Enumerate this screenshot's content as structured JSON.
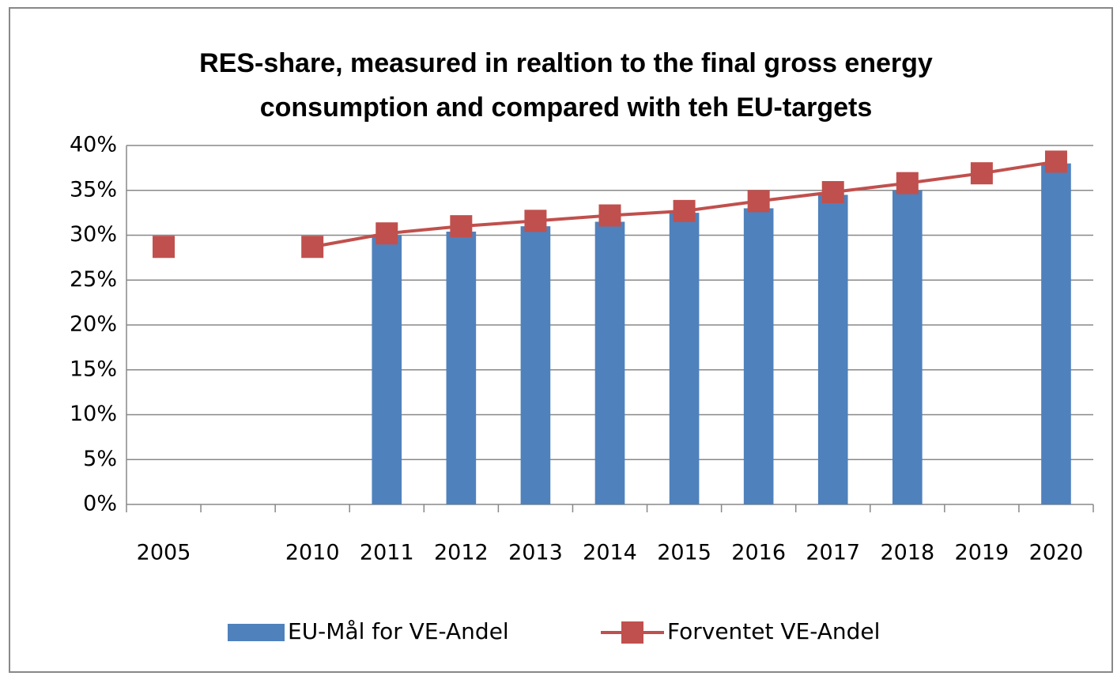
{
  "chart_data": {
    "type": "bar_line",
    "title": [
      "RES-share, measured in realtion to the final gross energy",
      "consumption and compared with teh EU-targets"
    ],
    "categories": [
      "2005",
      null,
      "2010",
      "2011",
      "2012",
      "2013",
      "2014",
      "2015",
      "2016",
      "2017",
      "2018",
      "2019",
      "2020"
    ],
    "series": [
      {
        "name": "EU-Mål for VE-Andel",
        "type": "bar",
        "color": "#4f81bd",
        "values": [
          null,
          null,
          null,
          30.0,
          30.4,
          31.0,
          31.5,
          32.5,
          33.0,
          34.5,
          35.0,
          null,
          38.0
        ]
      },
      {
        "name": "Forventet VE-Andel",
        "type": "line",
        "color": "#c0504d",
        "values": [
          28.7,
          null,
          28.7,
          30.2,
          31.0,
          31.6,
          32.2,
          32.7,
          33.8,
          34.8,
          35.8,
          36.9,
          38.2
        ]
      }
    ],
    "ylim": [
      0,
      40
    ],
    "yticks": [
      {
        "value": 0,
        "label": "0%"
      },
      {
        "value": 5,
        "label": "5%"
      },
      {
        "value": 10,
        "label": "10%"
      },
      {
        "value": 15,
        "label": "15%"
      },
      {
        "value": 20,
        "label": "20%"
      },
      {
        "value": 25,
        "label": "25%"
      },
      {
        "value": 30,
        "label": "30%"
      },
      {
        "value": 35,
        "label": "35%"
      },
      {
        "value": 40,
        "label": "40%"
      }
    ],
    "grid": true,
    "legend": "bottom"
  }
}
